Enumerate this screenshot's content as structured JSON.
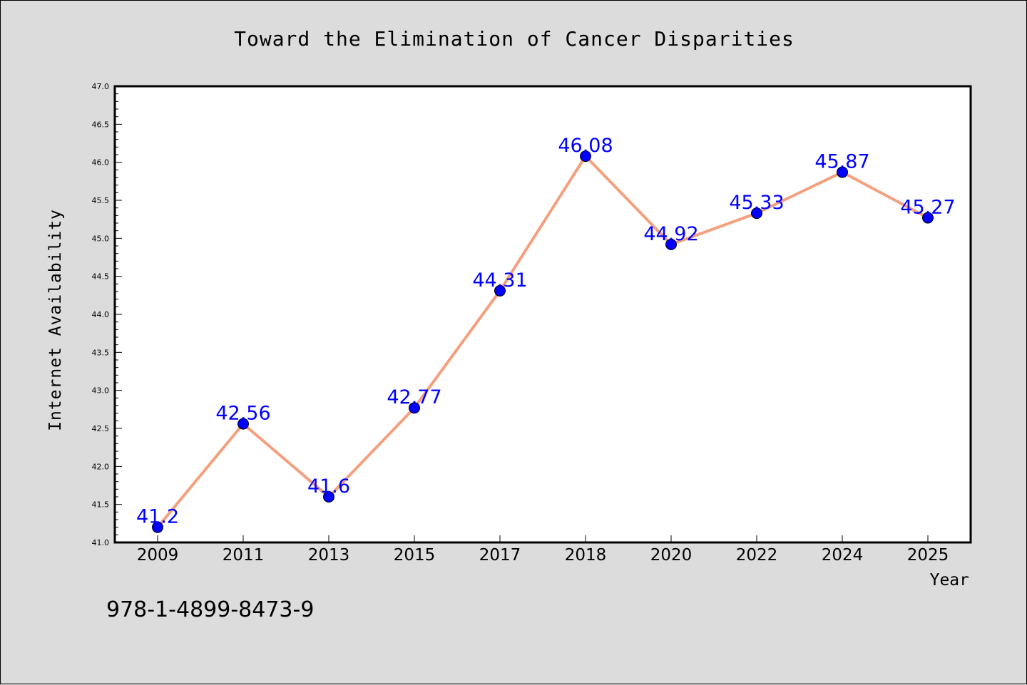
{
  "chart_data": {
    "type": "line",
    "title": "Toward the Elimination of Cancer Disparities",
    "xlabel": "Year",
    "ylabel": "Internet Availability",
    "categories": [
      "2009",
      "2011",
      "2013",
      "2015",
      "2017",
      "2018",
      "2020",
      "2022",
      "2024",
      "2025"
    ],
    "series": [
      {
        "values": [
          41.2,
          42.56,
          41.6,
          42.77,
          44.31,
          46.08,
          44.92,
          45.33,
          45.87,
          45.27
        ],
        "labels": [
          "41.2",
          "42.56",
          "41.6",
          "42.77",
          "44.31",
          "46.08",
          "44.92",
          "45.33",
          "45.87",
          "45.27"
        ],
        "line_color": "#f4a07e",
        "marker_color": "#0000ff"
      }
    ],
    "ylim": [
      41.0,
      47.0
    ],
    "yticks": [
      "41.0",
      "41.5",
      "42.0",
      "42.5",
      "43.0",
      "43.5",
      "44.0",
      "44.5",
      "45.0",
      "45.5",
      "46.0",
      "46.5",
      "47.0"
    ],
    "grid": false,
    "legend": "none",
    "annotation": "978-1-4899-8473-9",
    "label_color": "#0000ff",
    "background": "#dcdcdc",
    "plot_background": "#ffffff"
  }
}
